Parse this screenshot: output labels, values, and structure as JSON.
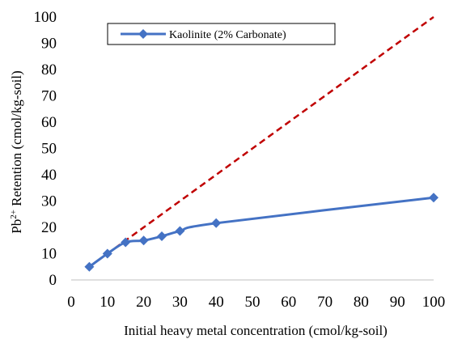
{
  "chart_data": {
    "type": "line",
    "xlabel": "Initial heavy metal  concentration (cmol/kg-soil)",
    "ylabel_prefix": "Pb",
    "ylabel_sup": "2+",
    "ylabel_rest": " Retention (cmol/kg-soil)",
    "xlim": [
      0,
      100
    ],
    "ylim": [
      0,
      100
    ],
    "xticks": [
      0,
      10,
      20,
      30,
      40,
      50,
      60,
      70,
      80,
      90,
      100
    ],
    "yticks": [
      0,
      10,
      20,
      30,
      40,
      50,
      60,
      70,
      80,
      90,
      100
    ],
    "grid": false,
    "legend_position": "top-left",
    "series": [
      {
        "name": "Kaolinite (2% Carbonate)",
        "color": "#4472C4",
        "marker": "diamond",
        "smooth": true,
        "x": [
          5,
          10,
          15,
          20,
          25,
          30,
          40,
          100
        ],
        "y": [
          5,
          10,
          14.3,
          15,
          16.6,
          18.6,
          21.6,
          31.3
        ]
      }
    ],
    "reference_line": {
      "color": "#C00000",
      "style": "dashed",
      "x": [
        5,
        100
      ],
      "y": [
        5,
        100
      ]
    }
  }
}
